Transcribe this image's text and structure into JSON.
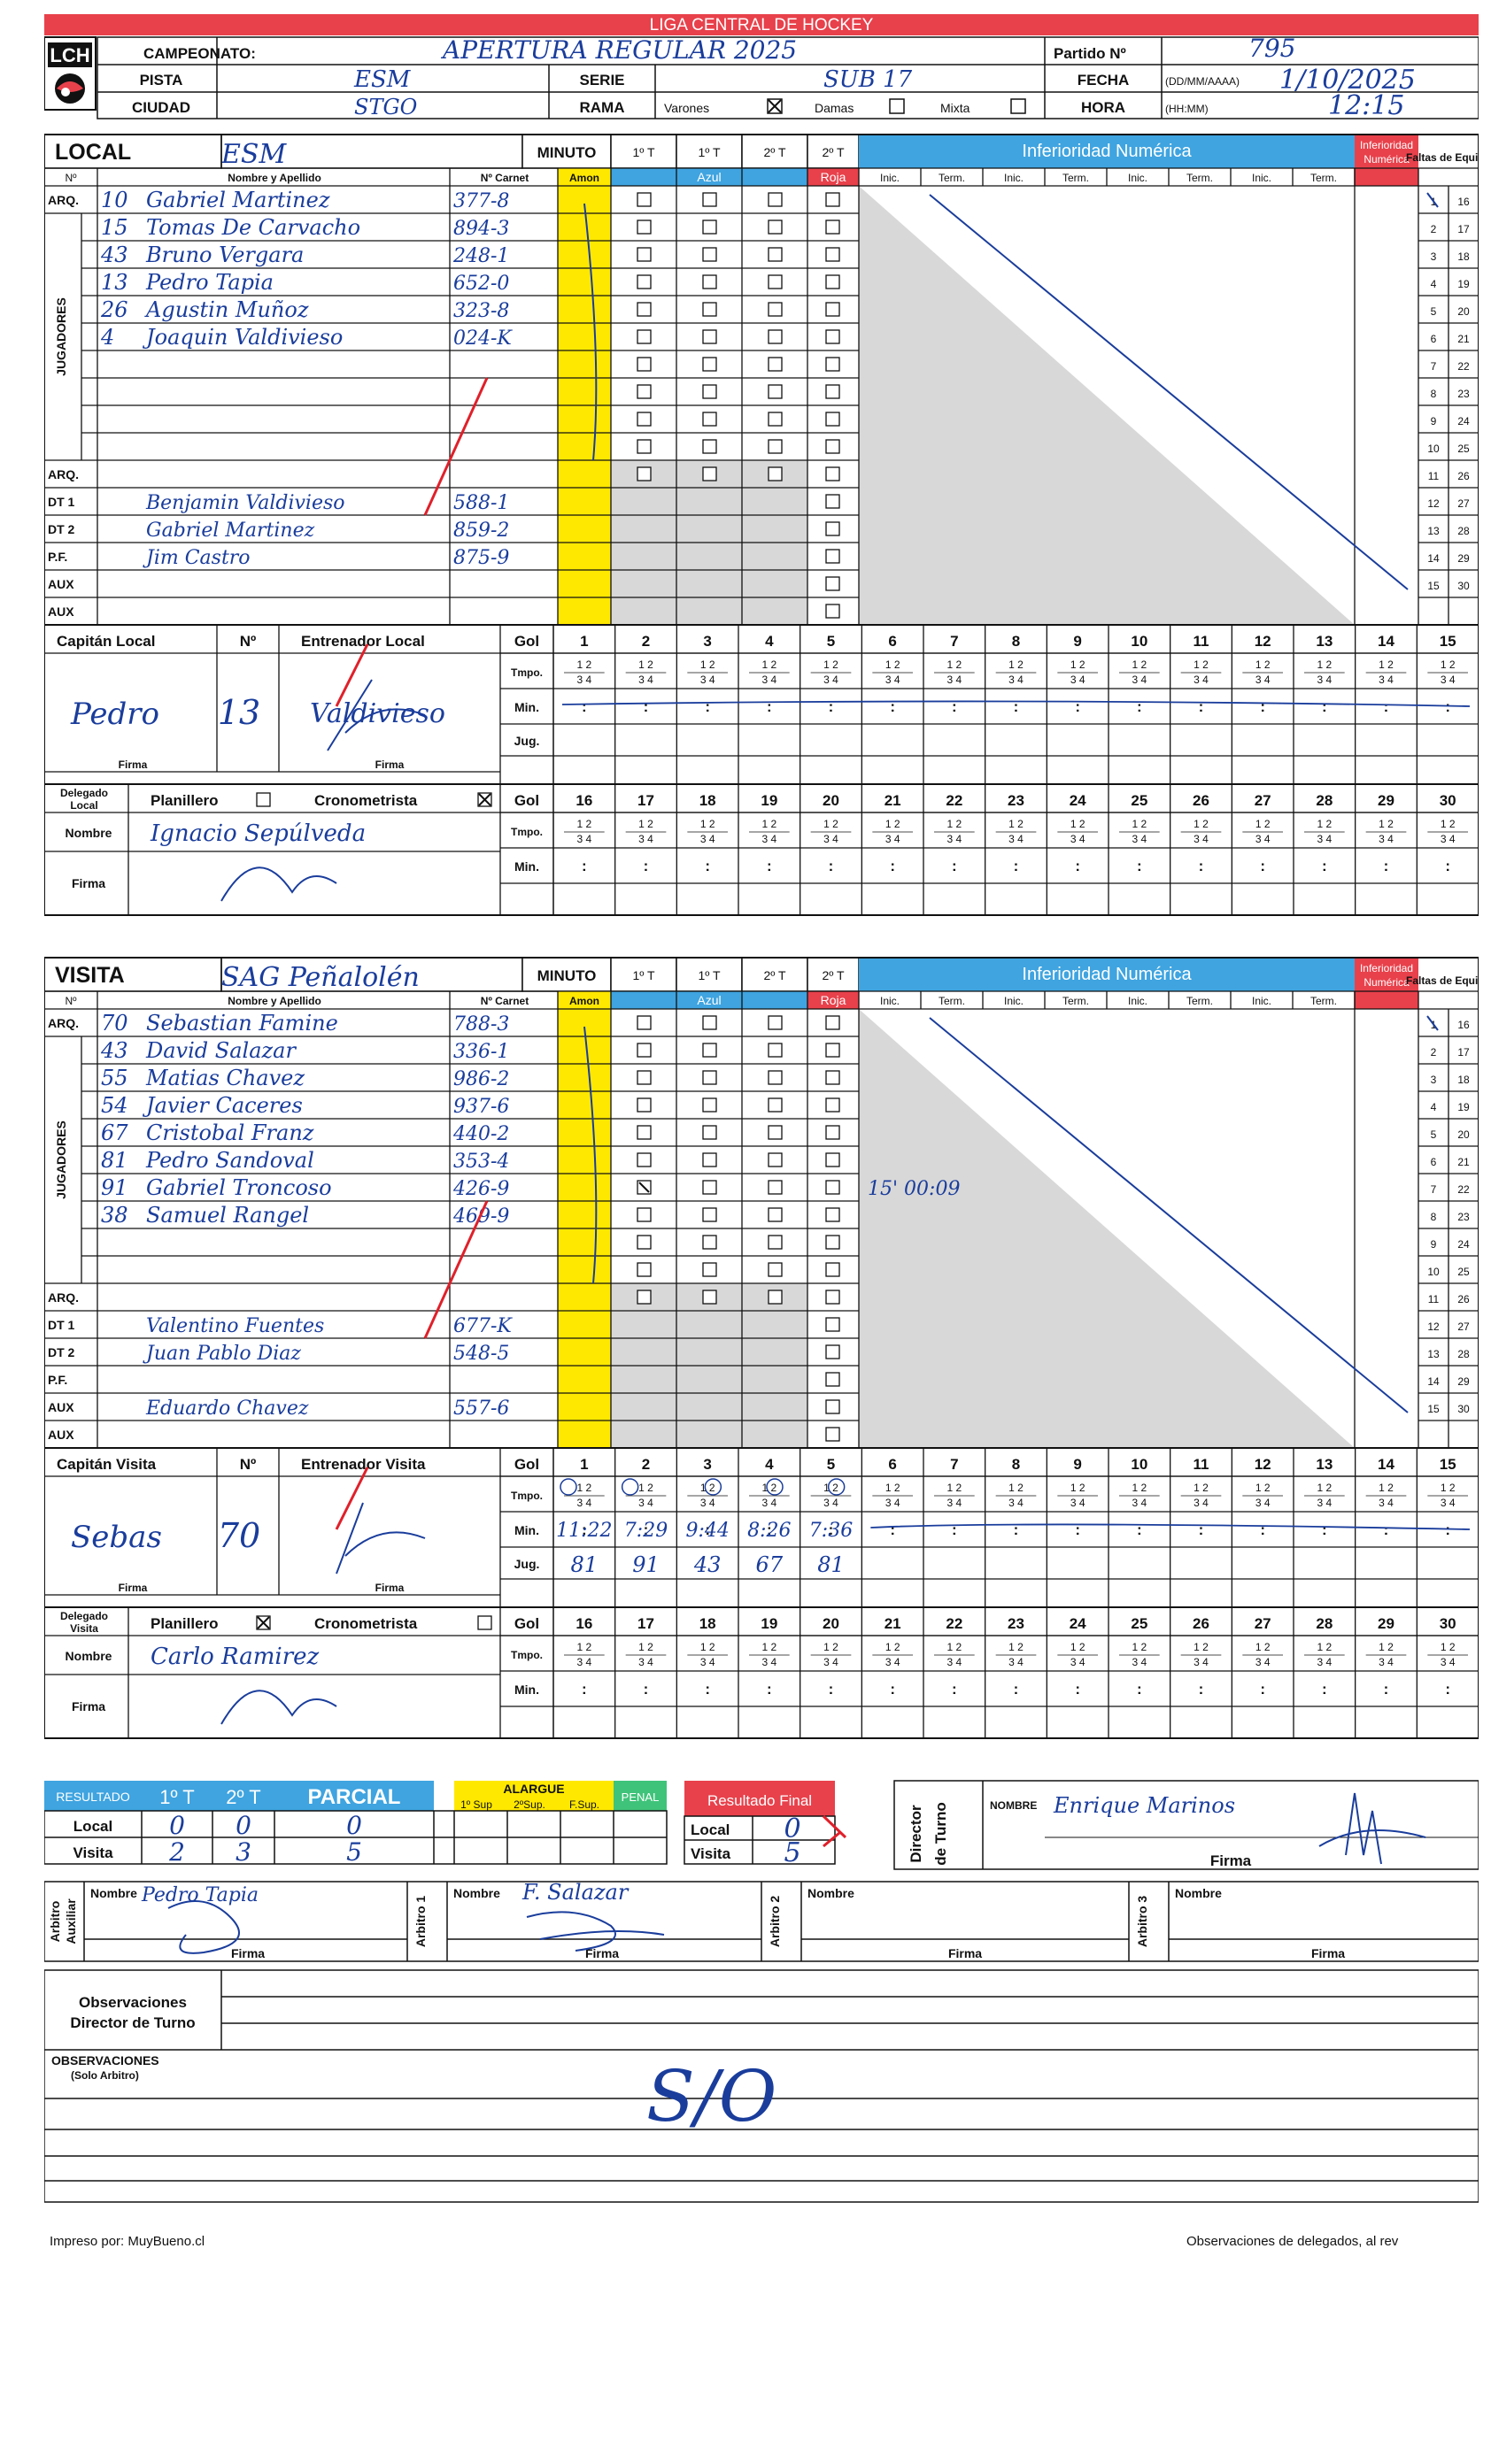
{
  "header": {
    "league_title": "LIGA CENTRAL DE HOCKEY",
    "logo_text": "LCH",
    "campeonato_label": "CAMPEONATO:",
    "campeonato_value": "APERTURA REGULAR 2025",
    "partido_label": "Partido Nº",
    "partido_value": "795",
    "pista_label": "PISTA",
    "pista_value": "ESM",
    "serie_label": "SERIE",
    "serie_value": "SUB 17",
    "fecha_label": "FECHA",
    "fecha_format": "(DD/MM/AAAA)",
    "fecha_value": "1/10/2025",
    "ciudad_label": "CIUDAD",
    "ciudad_value": "STGO",
    "rama_label": "RAMA",
    "rama_varones": "Varones",
    "rama_damas": "Damas",
    "rama_mixta": "Mixta",
    "rama_checked": "Varones",
    "hora_label": "HORA",
    "hora_format": "(HH:MM)",
    "hora_value": "12:15"
  },
  "labels": {
    "minuto": "MINUTO",
    "t1": "1º T",
    "t2": "2º T",
    "inferioridad": "Inferioridad Numérica",
    "inferioridad_short": "Inferioridad Numérica",
    "faltas": "Faltas de Equipo",
    "num": "Nº",
    "nombre_apellido": "Nombre y Apellido",
    "carnet": "Nº Carnet",
    "amon": "Amon",
    "azul": "Azul",
    "roja": "Roja",
    "inic": "Inic.",
    "term": "Term.",
    "jugadores": "JUGADORES",
    "arq": "ARQ.",
    "dt1": "DT 1",
    "dt2": "DT 2",
    "pf": "P.F.",
    "aux": "AUX",
    "gol": "Gol",
    "tmpo": "Tmpo.",
    "min": "Min.",
    "jug": "Jug.",
    "firma": "Firma",
    "nombre": "Nombre",
    "delegado_local": "Delegado Local",
    "delegado_visita": "Delegado Visita",
    "planillero": "Planillero",
    "cronometrista": "Cronometrista",
    "capitan_local": "Capitán Local",
    "capitan_visita": "Capitán Visita",
    "entrenador_local": "Entrenador Local",
    "entrenador_visita": "Entrenador Visita",
    "colon": ":",
    "q12": "1   2",
    "q34": "3   4"
  },
  "local": {
    "label": "LOCAL",
    "team_name": "ESM",
    "players": [
      {
        "num": "10",
        "name": "Gabriel Martinez",
        "carnet": "377-8"
      },
      {
        "num": "15",
        "name": "Tomas De Carvacho",
        "carnet": "894-3"
      },
      {
        "num": "43",
        "name": "Bruno Vergara",
        "carnet": "248-1"
      },
      {
        "num": "13",
        "name": "Pedro Tapia",
        "carnet": "652-0"
      },
      {
        "num": "26",
        "name": "Agustin Muñoz",
        "carnet": "323-8"
      },
      {
        "num": "4",
        "name": "Joaquin Valdivieso",
        "carnet": "024-K"
      }
    ],
    "staff": [
      {
        "name": "Benjamin Valdivieso",
        "carnet": "588-1"
      },
      {
        "name": "Gabriel Martinez",
        "carnet": "859-2"
      },
      {
        "name": "Jim Castro",
        "carnet": "875-9"
      }
    ],
    "captain_name": "Pedro",
    "captain_num": "13",
    "coach_signature": "Valdivieso",
    "delegado_nombre": "Ignacio Sepúlveda",
    "planillero_checked": false,
    "cronometrista_checked": true,
    "goals": []
  },
  "visita": {
    "label": "VISITA",
    "team_name": "SAG Peñalolén",
    "players": [
      {
        "num": "70",
        "name": "Sebastian Famine",
        "carnet": "788-3"
      },
      {
        "num": "43",
        "name": "David Salazar",
        "carnet": "336-1"
      },
      {
        "num": "55",
        "name": "Matias Chavez",
        "carnet": "986-2"
      },
      {
        "num": "54",
        "name": "Javier Caceres",
        "carnet": "937-6"
      },
      {
        "num": "67",
        "name": "Cristobal Franz",
        "carnet": "440-2"
      },
      {
        "num": "81",
        "name": "Pedro Sandoval",
        "carnet": "353-4"
      },
      {
        "num": "91",
        "name": "Gabriel Troncoso",
        "carnet": "426-9"
      },
      {
        "num": "38",
        "name": "Samuel Rangel",
        "carnet": "469-9"
      }
    ],
    "staff": [
      {
        "name": "Valentino Fuentes",
        "carnet": "677-K"
      },
      {
        "name": "Juan Pablo Diaz",
        "carnet": "548-5"
      },
      {
        "name": "",
        "carnet": ""
      },
      {
        "name": "Eduardo Chavez",
        "carnet": "557-6"
      }
    ],
    "captain_name": "Sebas",
    "captain_num": "70",
    "blue_card_note": "15' 00:09",
    "delegado_nombre": "Carlo Ramirez",
    "planillero_checked": true,
    "cronometrista_checked": false,
    "goals": [
      {
        "tmpo": "1",
        "min": "11:22",
        "jug": "81"
      },
      {
        "tmpo": "1",
        "min": "7:29",
        "jug": "91"
      },
      {
        "tmpo": "2",
        "min": "9:44",
        "jug": "43"
      },
      {
        "tmpo": "2",
        "min": "8:26",
        "jug": "67"
      },
      {
        "tmpo": "2",
        "min": "7:36",
        "jug": "81"
      }
    ]
  },
  "result": {
    "label": "RESULTADO",
    "t1": "1º T",
    "t2": "2º T",
    "parcial": "PARCIAL",
    "alargue": "ALARGUE",
    "sup1": "1º Sup",
    "sup2": "2ºSup.",
    "fsup": "F.Sup.",
    "penal": "PENAL",
    "final_label": "Resultado Final",
    "local_label": "Local",
    "visita_label": "Visita",
    "local_t1": "0",
    "local_t2": "0",
    "local_parcial": "0",
    "visita_t1": "2",
    "visita_t2": "3",
    "visita_parcial": "5",
    "final_local": "0",
    "final_visita": "5"
  },
  "director": {
    "label": "Director de Turno",
    "nombre_label": "NOMBRE",
    "nombre": "Enrique Marinos"
  },
  "arbitros": {
    "aux_label": "Arbitro Auxiliar",
    "aux_nombre": "Pedro Tapia",
    "a1_label": "Arbitro 1",
    "a1_nombre": "F. Salazar",
    "a2_label": "Arbitro 2",
    "a3_label": "Arbitro 3"
  },
  "observaciones": {
    "director_label_1": "Observaciones",
    "director_label_2": "Director de Turno",
    "arbitro_label_1": "OBSERVACIONES",
    "arbitro_label_2": "(Solo Arbitro)",
    "arbitro_text": "S/O"
  },
  "footer": {
    "left": "Impreso por: MuyBueno.cl",
    "right": "Observaciones de delegados, al rev"
  },
  "colors": {
    "red_header": "#e8414b",
    "blue_header": "#3fa4e0",
    "yellow": "#ffe800",
    "gray": "#d8d8d8",
    "ink": "#1a3d9c",
    "mark_red": "#e0202a"
  }
}
